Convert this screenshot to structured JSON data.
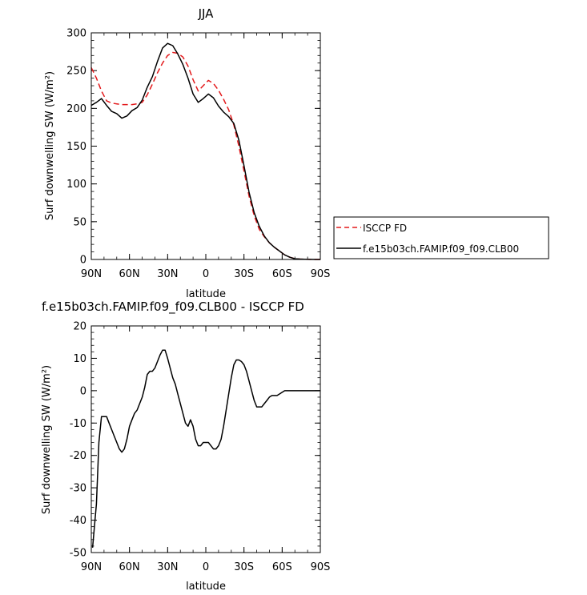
{
  "colors": {
    "isccp": "#e31a1c",
    "model": "#000000",
    "axis": "#000000"
  },
  "chart_data": [
    {
      "type": "line",
      "title": "JJA",
      "xlabel": "latitude",
      "ylabel": "Surf downwelling SW (W/m²)",
      "xlim": [
        90,
        -90
      ],
      "ylim": [
        0,
        300
      ],
      "xticks": [
        90,
        60,
        30,
        0,
        -30,
        -60,
        -90
      ],
      "xtick_labels": [
        "90N",
        "60N",
        "30N",
        "0",
        "30S",
        "60S",
        "90S"
      ],
      "yticks": [
        0,
        50,
        100,
        150,
        200,
        250,
        300
      ],
      "ytick_labels": [
        "0",
        "50",
        "100",
        "150",
        "200",
        "250",
        "300"
      ],
      "legend_position": "right",
      "series": [
        {
          "name": "ISCCP FD",
          "style": "dashed",
          "x": [
            90,
            86,
            82,
            78,
            74,
            70,
            66,
            62,
            58,
            54,
            50,
            46,
            42,
            38,
            34,
            30,
            26,
            22,
            18,
            14,
            10,
            6,
            2,
            -2,
            -6,
            -10,
            -14,
            -18,
            -22,
            -26,
            -30,
            -34,
            -38,
            -42,
            -46,
            -50,
            -54,
            -58,
            -62,
            -66,
            -70,
            -74,
            -78,
            -82,
            -86,
            -90
          ],
          "y": [
            254,
            240,
            223,
            210,
            207,
            206,
            205,
            205,
            205,
            206,
            208,
            218,
            232,
            247,
            260,
            270,
            274,
            273,
            268,
            256,
            238,
            223,
            230,
            237,
            233,
            224,
            212,
            198,
            178,
            150,
            117,
            84,
            58,
            40,
            30,
            22,
            16,
            11,
            6,
            3,
            1,
            0.5,
            0.3,
            0.1,
            0,
            0
          ]
        },
        {
          "name": "f.e15b03ch.FAMIP.f09_f09.CLB00",
          "style": "solid",
          "x": [
            90,
            86,
            82,
            78,
            74,
            70,
            66,
            62,
            58,
            54,
            50,
            46,
            42,
            38,
            34,
            30,
            26,
            22,
            18,
            14,
            10,
            6,
            2,
            -2,
            -6,
            -10,
            -14,
            -18,
            -22,
            -26,
            -30,
            -34,
            -38,
            -42,
            -46,
            -50,
            -54,
            -58,
            -62,
            -66,
            -70,
            -74,
            -78,
            -82,
            -86,
            -90
          ],
          "y": [
            204,
            208,
            213,
            204,
            196,
            193,
            187,
            190,
            197,
            201,
            211,
            228,
            242,
            262,
            280,
            286,
            283,
            272,
            258,
            240,
            219,
            208,
            213,
            219,
            214,
            203,
            195,
            189,
            180,
            158,
            124,
            89,
            62,
            44,
            31,
            22,
            16,
            11,
            6,
            3,
            1,
            0.5,
            0.3,
            0.1,
            0,
            0
          ]
        }
      ]
    },
    {
      "type": "line",
      "title": "f.e15b03ch.FAMIP.f09_f09.CLB00 - ISCCP FD",
      "xlabel": "latitude",
      "ylabel": "Surf downwelling SW (W/m²)",
      "xlim": [
        90,
        -90
      ],
      "ylim": [
        -50,
        20
      ],
      "xticks": [
        90,
        60,
        30,
        0,
        -30,
        -60,
        -90
      ],
      "xtick_labels": [
        "90N",
        "60N",
        "30N",
        "0",
        "30S",
        "60S",
        "90S"
      ],
      "yticks": [
        -50,
        -40,
        -30,
        -20,
        -10,
        0,
        10,
        20
      ],
      "ytick_labels": [
        "-50",
        "-40",
        "-30",
        "-20",
        "-10",
        "0",
        "10",
        "20"
      ],
      "series": [
        {
          "style": "solid",
          "x": [
            89,
            86,
            84,
            82,
            80,
            78,
            76,
            74,
            72,
            70,
            68,
            66,
            64,
            62,
            60,
            58,
            56,
            54,
            52,
            50,
            48,
            46,
            44,
            42,
            40,
            38,
            36,
            34,
            32,
            30,
            28,
            26,
            24,
            22,
            20,
            18,
            16,
            14,
            12,
            10,
            8,
            6,
            4,
            2,
            0,
            -2,
            -4,
            -6,
            -8,
            -10,
            -12,
            -14,
            -16,
            -18,
            -20,
            -22,
            -24,
            -26,
            -28,
            -30,
            -32,
            -34,
            -36,
            -38,
            -40,
            -42,
            -44,
            -46,
            -48,
            -50,
            -52,
            -54,
            -56,
            -58,
            -60,
            -62,
            -64,
            -66,
            -68,
            -70,
            -72,
            -74,
            -76,
            -78,
            -80,
            -82,
            -84,
            -86,
            -88,
            -90
          ],
          "y": [
            -48.5,
            -35,
            -16,
            -8,
            -8,
            -8,
            -10,
            -12,
            -14,
            -16,
            -18,
            -19,
            -18,
            -15,
            -11,
            -9,
            -7,
            -6,
            -4,
            -2,
            1,
            5,
            6,
            6,
            7,
            9,
            11,
            12.5,
            12.5,
            10,
            7,
            4,
            2,
            -1,
            -4,
            -7,
            -10,
            -11,
            -9,
            -11,
            -15,
            -17,
            -17,
            -16,
            -16,
            -16,
            -17,
            -18,
            -18,
            -17,
            -15,
            -11,
            -6,
            -1,
            4,
            8,
            9.5,
            9.5,
            9,
            8,
            6,
            3,
            0,
            -3,
            -5,
            -5,
            -5,
            -4,
            -3,
            -2,
            -1.5,
            -1.5,
            -1.5,
            -1,
            -0.5,
            0,
            0,
            0,
            0,
            0,
            0,
            0,
            0,
            0,
            0,
            0,
            0,
            0,
            0,
            0
          ]
        }
      ]
    }
  ]
}
